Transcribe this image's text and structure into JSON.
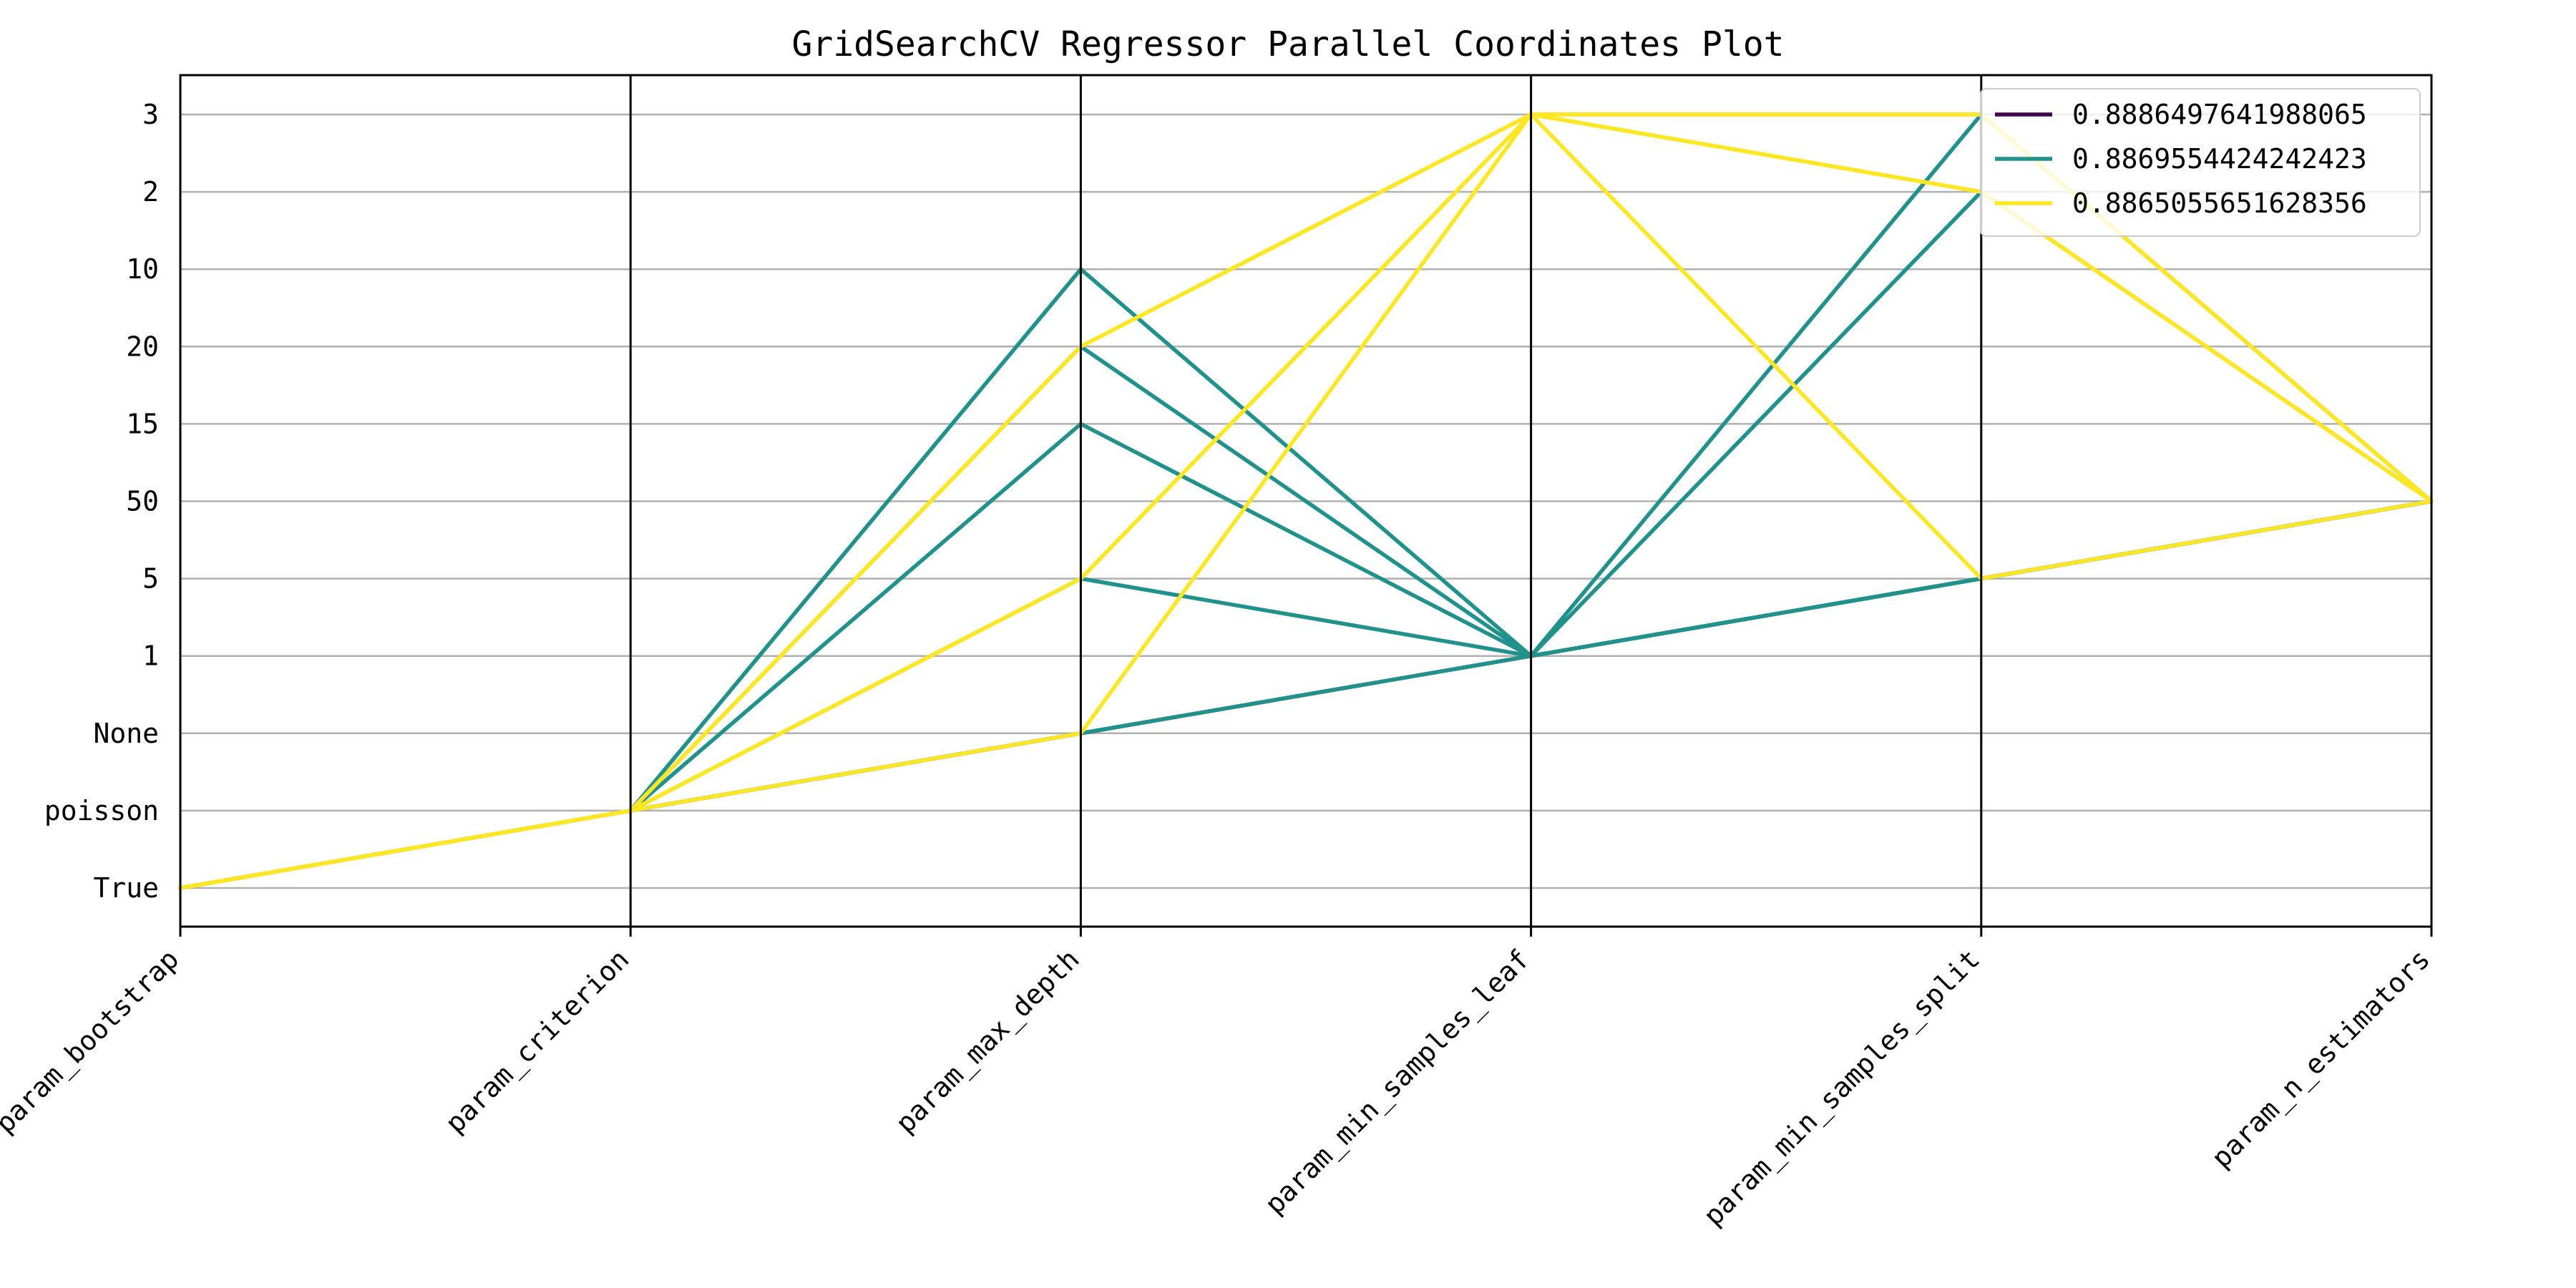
{
  "chart_data": {
    "type": "parallel_coordinates",
    "title": "GridSearchCV Regressor Parallel Coordinates Plot",
    "axes": [
      "param_bootstrap",
      "param_criterion",
      "param_max_depth",
      "param_min_samples_leaf",
      "param_min_samples_split",
      "param_n_estimators"
    ],
    "y_categories": [
      "True",
      "poisson",
      "None",
      "1",
      "5",
      "50",
      "15",
      "20",
      "10",
      "2",
      "3"
    ],
    "grid": true,
    "legend_placement": "top-right",
    "series": [
      {
        "name": "0.8886497641988065",
        "color": "#440154",
        "lines": [
          [
            "True",
            "poisson",
            "None",
            "1",
            "5",
            "50"
          ]
        ]
      },
      {
        "name": "0.8869554424242423",
        "color": "#21918c",
        "lines": [
          [
            "True",
            "poisson",
            "10",
            "1",
            "3",
            "50"
          ],
          [
            "True",
            "poisson",
            "20",
            "1",
            "2",
            "50"
          ],
          [
            "True",
            "poisson",
            "15",
            "1",
            "5",
            "50"
          ],
          [
            "True",
            "poisson",
            "5",
            "1",
            "5",
            "50"
          ],
          [
            "True",
            "poisson",
            "None",
            "1",
            "5",
            "50"
          ]
        ]
      },
      {
        "name": "0.8865055651628356",
        "color": "#fde725",
        "lines": [
          [
            "True",
            "poisson",
            "20",
            "3",
            "3",
            "50"
          ],
          [
            "True",
            "poisson",
            "5",
            "3",
            "2",
            "50"
          ],
          [
            "True",
            "poisson",
            "None",
            "3",
            "5",
            "50"
          ],
          [
            "True",
            "poisson",
            "20",
            "3",
            "2",
            "50"
          ],
          [
            "True",
            "poisson",
            "5",
            "3",
            "3",
            "50"
          ]
        ]
      }
    ]
  }
}
